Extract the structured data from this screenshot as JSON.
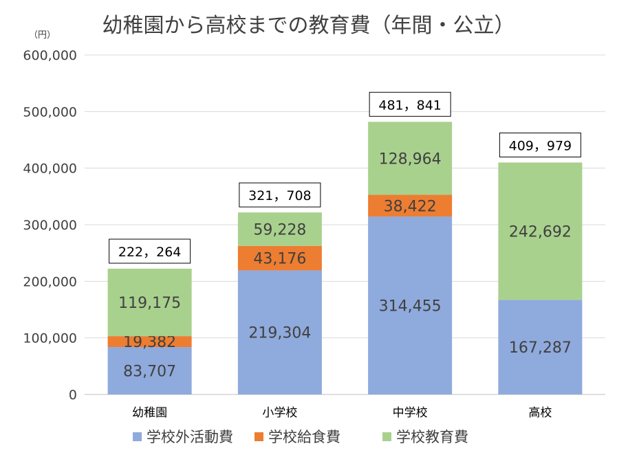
{
  "chart_data": {
    "type": "bar",
    "stacked": true,
    "title": "幼稚園から高校までの教育費（年間・公立）",
    "unit_label": "（円）",
    "categories": [
      "幼稚園",
      "小学校",
      "中学校",
      "高校"
    ],
    "series": [
      {
        "name": "学校外活動費",
        "color": "#8faadc",
        "values": [
          83707,
          219304,
          314455,
          167287
        ],
        "labels": [
          "83,707",
          "219,304",
          "314,455",
          "167,287"
        ]
      },
      {
        "name": "学校給食費",
        "color": "#ed7d31",
        "values": [
          19382,
          43176,
          38422,
          0
        ],
        "labels": [
          "19,382",
          "43,176",
          "38,422",
          ""
        ]
      },
      {
        "name": "学校教育費",
        "color": "#a9d18e",
        "values": [
          119175,
          59228,
          128964,
          242692
        ],
        "labels": [
          "119,175",
          "59,228",
          "128,964",
          "242,692"
        ]
      }
    ],
    "totals": [
      222264,
      321708,
      481841,
      409979
    ],
    "total_labels": [
      "222，264",
      "321，708",
      "481，841",
      "409，979"
    ],
    "ylim": [
      0,
      600000
    ],
    "y_ticks": [
      0,
      100000,
      200000,
      300000,
      400000,
      500000,
      600000
    ],
    "y_tick_labels": [
      "0",
      "100,000",
      "200,000",
      "300,000",
      "400,000",
      "500,000",
      "600,000"
    ],
    "grid": true,
    "legend_position": "bottom"
  }
}
